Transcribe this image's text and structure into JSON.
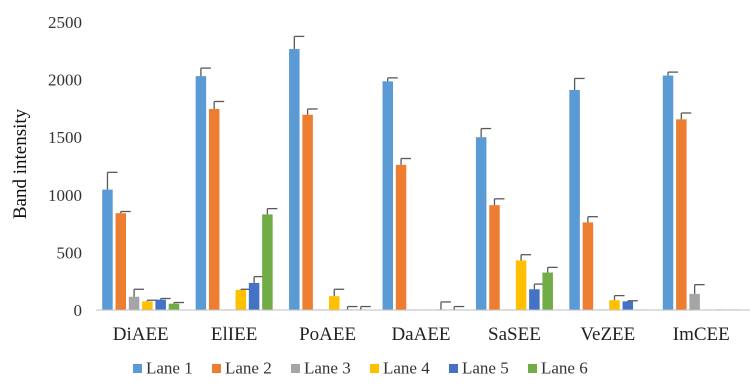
{
  "chart_data": {
    "type": "bar",
    "ylabel": "Band intensity",
    "ylim": [
      0,
      2500
    ],
    "yticks": [
      0,
      500,
      1000,
      1500,
      2000,
      2500
    ],
    "grid": false,
    "legend_position": "bottom",
    "categories": [
      "DiAEE",
      "ElIEE",
      "PoAEE",
      "DaAEE",
      "SaSEE",
      "VeZEE",
      "ImCEE"
    ],
    "series": [
      {
        "name": "Lane 1",
        "color": "#5B9BD5",
        "values": [
          1045,
          2030,
          2265,
          1985,
          1500,
          1910,
          2035
        ],
        "errors": [
          150,
          70,
          110,
          30,
          75,
          100,
          30
        ]
      },
      {
        "name": "Lane 2",
        "color": "#ED7D31",
        "values": [
          840,
          1745,
          1695,
          1260,
          910,
          760,
          1655
        ],
        "errors": [
          15,
          65,
          50,
          55,
          55,
          50,
          55
        ]
      },
      {
        "name": "Lane 3",
        "color": "#A5A5A5",
        "values": [
          115,
          5,
          5,
          5,
          5,
          5,
          140
        ],
        "errors": [
          65,
          0,
          0,
          0,
          0,
          0,
          80
        ]
      },
      {
        "name": "Lane 4",
        "color": "#FFC000",
        "values": [
          75,
          175,
          120,
          5,
          430,
          85,
          5
        ],
        "errors": [
          10,
          5,
          60,
          0,
          50,
          40,
          0
        ]
      },
      {
        "name": "Lane 5",
        "color": "#4472C4",
        "values": [
          90,
          235,
          5,
          5,
          180,
          75,
          5
        ],
        "errors": [
          10,
          55,
          25,
          65,
          45,
          5,
          0
        ]
      },
      {
        "name": "Lane 6",
        "color": "#70AD47",
        "values": [
          55,
          830,
          5,
          5,
          325,
          5,
          5
        ],
        "errors": [
          10,
          50,
          25,
          25,
          45,
          0,
          0
        ]
      }
    ]
  }
}
